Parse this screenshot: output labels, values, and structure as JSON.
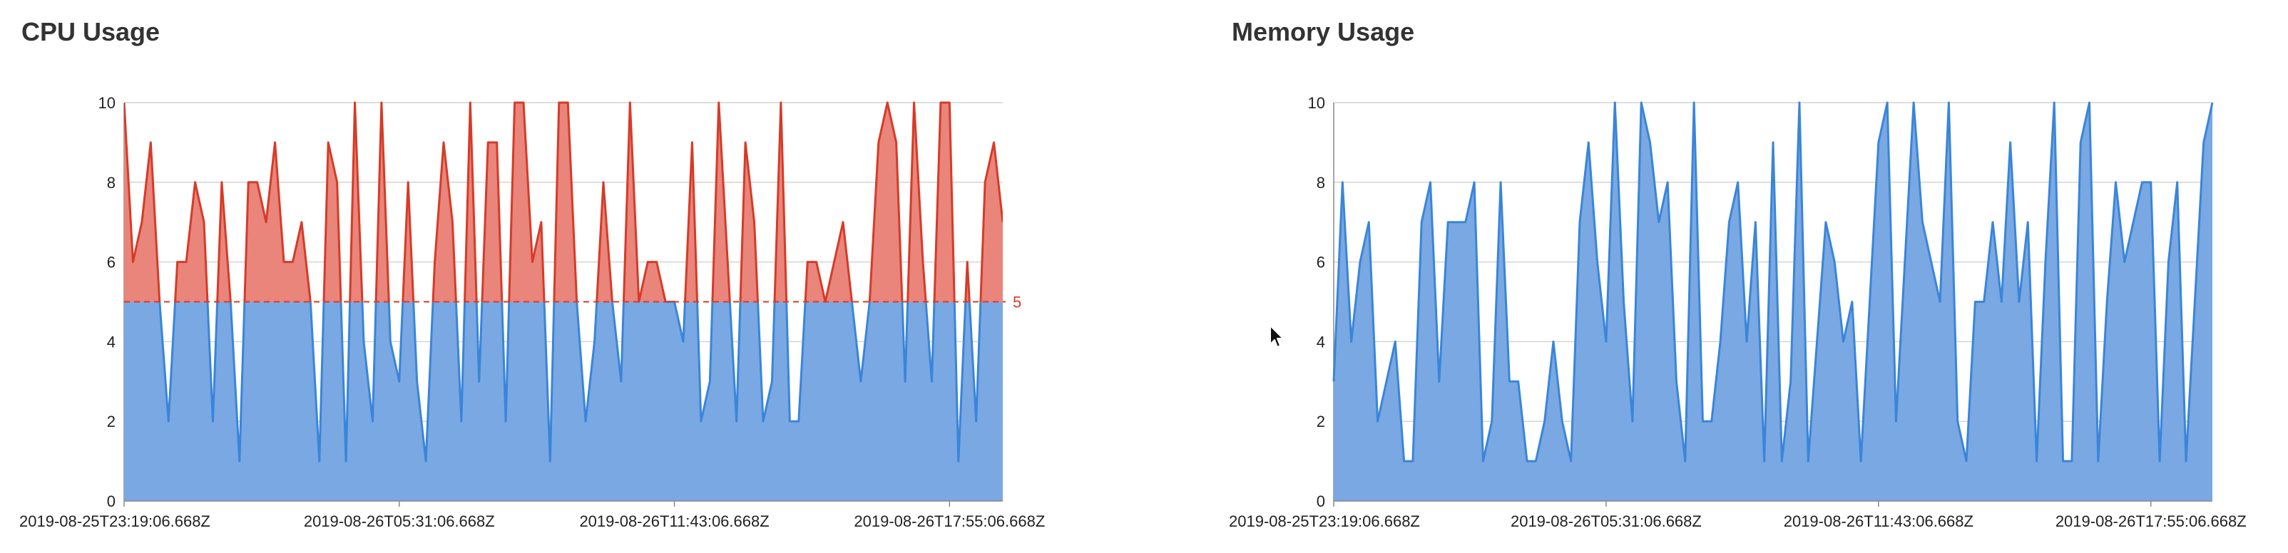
{
  "colors": {
    "blue_fill": "#7aa8e3",
    "blue_line": "#3a85d9",
    "red_fill": "#e9857a",
    "red_line": "#d63b28",
    "grid": "#d4d4d4"
  },
  "cpu": {
    "title": "CPU Usage",
    "threshold": 5,
    "threshold_label": "5"
  },
  "memory": {
    "title": "Memory Usage"
  },
  "chart_data": [
    {
      "type": "area",
      "title": "CPU Usage",
      "xlabel": "",
      "ylabel": "",
      "ylim": [
        0,
        10
      ],
      "y_ticks": [
        "0",
        "2",
        "4",
        "6",
        "8",
        "10"
      ],
      "x_tick_labels": [
        "2019-08-25T23:19:06.668Z",
        "2019-08-26T05:31:06.668Z",
        "2019-08-26T11:43:06.668Z",
        "2019-08-26T17:55:06.668Z"
      ],
      "x_tick_index": [
        0,
        31,
        62,
        93
      ],
      "grid": true,
      "threshold_line": 5,
      "values": [
        10,
        6,
        7,
        9,
        5,
        2,
        6,
        6,
        8,
        7,
        2,
        8,
        5,
        1,
        8,
        8,
        7,
        9,
        6,
        6,
        7,
        5,
        1,
        9,
        8,
        1,
        10,
        4,
        2,
        10,
        4,
        3,
        8,
        3,
        1,
        6,
        9,
        7,
        2,
        10,
        3,
        9,
        9,
        2,
        10,
        10,
        6,
        7,
        1,
        10,
        10,
        5,
        2,
        4,
        8,
        5,
        3,
        10,
        5,
        6,
        6,
        5,
        5,
        4,
        9,
        2,
        3,
        10,
        6,
        2,
        9,
        7,
        2,
        3,
        10,
        2,
        2,
        6,
        6,
        5,
        6,
        7,
        5,
        3,
        5,
        9,
        10,
        9,
        3,
        10,
        6,
        3,
        10,
        10,
        1,
        6,
        2,
        8,
        9,
        7
      ]
    },
    {
      "type": "area",
      "title": "Memory Usage",
      "xlabel": "",
      "ylabel": "",
      "ylim": [
        0,
        10
      ],
      "y_ticks": [
        "0",
        "2",
        "4",
        "6",
        "8",
        "10"
      ],
      "x_tick_labels": [
        "2019-08-25T23:19:06.668Z",
        "2019-08-26T05:31:06.668Z",
        "2019-08-26T11:43:06.668Z",
        "2019-08-26T17:55:06.668Z"
      ],
      "x_tick_index": [
        0,
        31,
        62,
        93
      ],
      "grid": true,
      "values": [
        3,
        8,
        4,
        6,
        7,
        2,
        3,
        4,
        1,
        1,
        7,
        8,
        3,
        7,
        7,
        7,
        8,
        1,
        2,
        8,
        3,
        3,
        1,
        1,
        2,
        4,
        2,
        1,
        7,
        9,
        6,
        4,
        10,
        5,
        2,
        10,
        9,
        7,
        8,
        3,
        1,
        10,
        2,
        2,
        4,
        7,
        8,
        4,
        7,
        1,
        9,
        1,
        3,
        10,
        1,
        4,
        7,
        6,
        4,
        5,
        1,
        5,
        9,
        10,
        2,
        6,
        10,
        7,
        6,
        5,
        10,
        2,
        1,
        5,
        5,
        7,
        5,
        9,
        5,
        7,
        1,
        6,
        10,
        1,
        1,
        9,
        10,
        1,
        5,
        8,
        6,
        7,
        8,
        8,
        1,
        6,
        8,
        1,
        5,
        9,
        10
      ]
    }
  ]
}
